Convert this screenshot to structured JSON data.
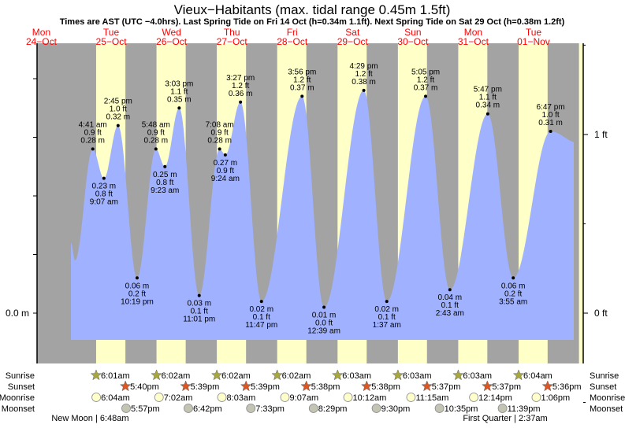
{
  "chart_data": {
    "type": "area",
    "title": "Vieux−Habitants (max. tidal range 0.45m 1.5ft)",
    "subtitle": "Times are AST (UTC −4.0hrs). Last Spring Tide on Fri 14 Oct (h=0.34m 1.1ft). Next Spring Tide on Sat 29 Oct (h=0.38m 1.2ft)",
    "days": [
      {
        "dow": "Mon",
        "date": "24−Oct"
      },
      {
        "dow": "Tue",
        "date": "25−Oct"
      },
      {
        "dow": "Wed",
        "date": "26−Oct"
      },
      {
        "dow": "Thu",
        "date": "27−Oct"
      },
      {
        "dow": "Fri",
        "date": "28−Oct"
      },
      {
        "dow": "Sat",
        "date": "29−Oct"
      },
      {
        "dow": "Sun",
        "date": "30−Oct"
      },
      {
        "dow": "Mon",
        "date": "31−Oct"
      },
      {
        "dow": "Tue",
        "date": "01−Nov"
      }
    ],
    "y_axis": {
      "left_label": "0.0 m",
      "right_labels": [
        "1 ft",
        "0 ft"
      ],
      "unit": "m",
      "ylim": [
        -0.045,
        0.46
      ]
    },
    "extremes": [
      {
        "day": 1,
        "time": "4:41 am",
        "m": 0.28,
        "ft": "0.9 ft",
        "m_label": "0.28 m",
        "type": "high"
      },
      {
        "day": 1,
        "time": "9:07 am",
        "m": 0.23,
        "ft": "0.8 ft",
        "m_label": "0.23 m",
        "type": "low"
      },
      {
        "day": 1,
        "time": "2:45 pm",
        "m": 0.32,
        "ft": "1.0 ft",
        "m_label": "0.32 m",
        "type": "high"
      },
      {
        "day": 1,
        "time": "10:19 pm",
        "m": 0.06,
        "ft": "0.2 ft",
        "m_label": "0.06 m",
        "type": "low"
      },
      {
        "day": 2,
        "time": "5:48 am",
        "m": 0.28,
        "ft": "0.9 ft",
        "m_label": "0.28 m",
        "type": "high"
      },
      {
        "day": 2,
        "time": "9:23 am",
        "m": 0.25,
        "ft": "0.8 ft",
        "m_label": "0.25 m",
        "type": "low"
      },
      {
        "day": 2,
        "time": "3:03 pm",
        "m": 0.35,
        "ft": "1.1 ft",
        "m_label": "0.35 m",
        "type": "high"
      },
      {
        "day": 2,
        "time": "11:01 pm",
        "m": 0.03,
        "ft": "0.1 ft",
        "m_label": "0.03 m",
        "type": "low"
      },
      {
        "day": 3,
        "time": "7:08 am",
        "m": 0.28,
        "ft": "0.9 ft",
        "m_label": "0.28 m",
        "type": "high"
      },
      {
        "day": 3,
        "time": "9:24 am",
        "m": 0.27,
        "ft": "0.9 ft",
        "m_label": "0.27 m",
        "type": "low"
      },
      {
        "day": 3,
        "time": "3:27 pm",
        "m": 0.36,
        "ft": "1.2 ft",
        "m_label": "0.36 m",
        "type": "high"
      },
      {
        "day": 3,
        "time": "11:47 pm",
        "m": 0.02,
        "ft": "0.1 ft",
        "m_label": "0.02 m",
        "type": "low"
      },
      {
        "day": 4,
        "time": "3:56 pm",
        "m": 0.37,
        "ft": "1.2 ft",
        "m_label": "0.37 m",
        "type": "high"
      },
      {
        "day": 5,
        "time": "12:39 am",
        "m": 0.01,
        "ft": "0.0 ft",
        "m_label": "0.01 m",
        "type": "low"
      },
      {
        "day": 5,
        "time": "4:29 pm",
        "m": 0.38,
        "ft": "1.2 ft",
        "m_label": "0.38 m",
        "type": "high"
      },
      {
        "day": 6,
        "time": "1:37 am",
        "m": 0.02,
        "ft": "0.1 ft",
        "m_label": "0.02 m",
        "type": "low"
      },
      {
        "day": 6,
        "time": "5:05 pm",
        "m": 0.37,
        "ft": "1.2 ft",
        "m_label": "0.37 m",
        "type": "high"
      },
      {
        "day": 7,
        "time": "2:43 am",
        "m": 0.04,
        "ft": "0.1 ft",
        "m_label": "0.04 m",
        "type": "low"
      },
      {
        "day": 7,
        "time": "5:47 pm",
        "m": 0.34,
        "ft": "1.1 ft",
        "m_label": "0.34 m",
        "type": "high"
      },
      {
        "day": 8,
        "time": "3:55 am",
        "m": 0.06,
        "ft": "0.2 ft",
        "m_label": "0.06 m",
        "type": "low"
      },
      {
        "day": 8,
        "time": "6:47 pm",
        "m": 0.31,
        "ft": "1.0 ft",
        "m_label": "0.31 m",
        "type": "high"
      }
    ],
    "row_labels": {
      "sunrise": "Sunrise",
      "sunset": "Sunset",
      "moonrise": "Moonrise",
      "moonset": "Moonset"
    },
    "sunrise": [
      {
        "day": 1,
        "time": "6:01am"
      },
      {
        "day": 2,
        "time": "6:02am"
      },
      {
        "day": 3,
        "time": "6:02am"
      },
      {
        "day": 4,
        "time": "6:02am"
      },
      {
        "day": 5,
        "time": "6:03am"
      },
      {
        "day": 6,
        "time": "6:03am"
      },
      {
        "day": 7,
        "time": "6:03am"
      },
      {
        "day": 8,
        "time": "6:04am"
      }
    ],
    "sunset": [
      {
        "day": 1,
        "time": "5:40pm"
      },
      {
        "day": 2,
        "time": "5:39pm"
      },
      {
        "day": 3,
        "time": "5:39pm"
      },
      {
        "day": 4,
        "time": "5:38pm"
      },
      {
        "day": 5,
        "time": "5:38pm"
      },
      {
        "day": 6,
        "time": "5:37pm"
      },
      {
        "day": 7,
        "time": "5:37pm"
      },
      {
        "day": 8,
        "time": "5:36pm"
      }
    ],
    "moonrise": [
      {
        "day": 1,
        "time": "6:04am"
      },
      {
        "day": 2,
        "time": "7:02am"
      },
      {
        "day": 3,
        "time": "8:03am"
      },
      {
        "day": 4,
        "time": "9:07am"
      },
      {
        "day": 5,
        "time": "10:12am"
      },
      {
        "day": 6,
        "time": "11:15am"
      },
      {
        "day": 7,
        "time": "12:14pm"
      },
      {
        "day": 8,
        "time": "1:06pm"
      }
    ],
    "moonset": [
      {
        "day": 1,
        "time": "5:57pm"
      },
      {
        "day": 2,
        "time": "6:42pm"
      },
      {
        "day": 3,
        "time": "7:33pm"
      },
      {
        "day": 4,
        "time": "8:29pm"
      },
      {
        "day": 5,
        "time": "9:30pm"
      },
      {
        "day": 6,
        "time": "10:35pm"
      },
      {
        "day": 7,
        "time": "11:39pm"
      }
    ],
    "moon_phases": [
      {
        "day": 1,
        "time": "6:48am",
        "label": "New Moon | 6:48am"
      },
      {
        "day": 8,
        "time": "2:37am",
        "label": "First Quarter | 2:37am"
      }
    ],
    "colors": {
      "night": "#a3a3a3",
      "day": "#ffffc8",
      "tide": "#9fb1ff",
      "day_label": "#ff0000",
      "sunrise": "#a8a83a",
      "sunset": "#dd5522",
      "moonrise": "#ffffcc",
      "moonset": "#c4c4b4"
    }
  }
}
